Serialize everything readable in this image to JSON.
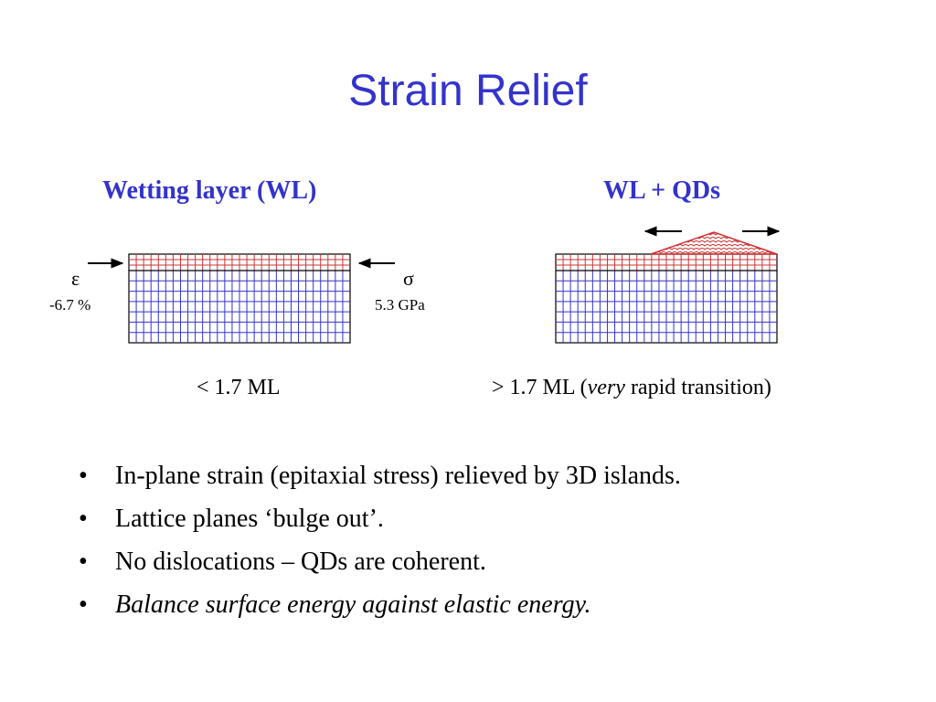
{
  "slide": {
    "title": "Strain Relief",
    "left_heading": "Wetting layer (WL)",
    "right_heading": "WL + QDs",
    "strain_symbol": "ε",
    "strain_value": "-6.7 %",
    "stress_symbol": "σ",
    "stress_value": "5.3 GPa",
    "left_caption": "< 1.7 ML",
    "right_caption_prefix": "> 1.7 ML (",
    "right_caption_italic": "very",
    "right_caption_suffix": " rapid transition)",
    "bullet_char": "•",
    "bullets": [
      "In-plane strain (epitaxial stress) relieved by 3D islands.",
      "Lattice planes ‘bulge out’.",
      "No dislocations – QDs are coherent.",
      "Balance surface energy against elastic energy."
    ]
  },
  "colors": {
    "title": "#3333cc",
    "substrate_lines": "#3333cc",
    "wetting_layer_lines": "#cc3333",
    "outline": "#000000"
  }
}
